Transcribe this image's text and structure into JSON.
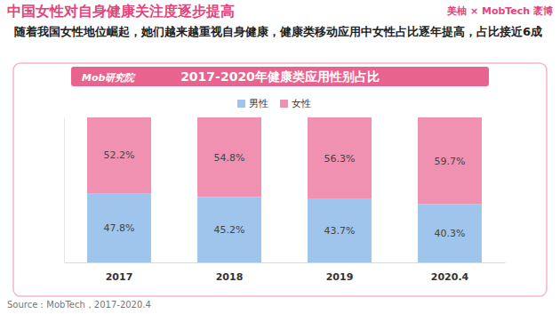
{
  "header": {
    "title": "中国女性对自身健康关注度逐步提高",
    "subtitle": "随着我国女性地位崛起，她们越来越重视自身健康，健康类移动应用中女性占比逐年提高，占比接近6成",
    "brand": "美柚 × MobTech 袤博",
    "publisher": "Mob研究院"
  },
  "chart_data": {
    "type": "bar",
    "title": "2017-2020年健康类应用性别占比",
    "categories": [
      "2017",
      "2018",
      "2019",
      "2020.4"
    ],
    "series": [
      {
        "name": "男性",
        "color": "#9fc5ec",
        "values": [
          47.8,
          45.2,
          43.7,
          40.3
        ],
        "value_labels": [
          "47.8%",
          "45.2%",
          "43.7%",
          "40.3%"
        ]
      },
      {
        "name": "女性",
        "color": "#f191b2",
        "values": [
          52.2,
          54.8,
          56.3,
          59.7
        ],
        "value_labels": [
          "52.2%",
          "54.8%",
          "56.3%",
          "59.7%"
        ]
      }
    ],
    "ylim": [
      0,
      100
    ],
    "stacked": true,
    "data_labels": true,
    "legend": "top",
    "tick_labels": "x"
  },
  "footer": {
    "source": "Source：MobTech，2017-2020.4"
  }
}
